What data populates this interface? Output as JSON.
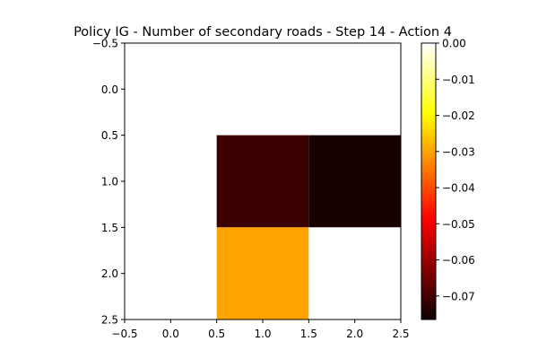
{
  "chart_data": {
    "type": "heatmap",
    "title": "Policy IG - Number of secondary roads - Step 14 - Action 4",
    "xlabel": "",
    "ylabel": "",
    "xlim": [
      -0.5,
      2.5
    ],
    "ylim": [
      2.5,
      -0.5
    ],
    "x_ticks": [
      "−0.5",
      "0.0",
      "0.5",
      "1.0",
      "1.5",
      "2.0",
      "2.5"
    ],
    "x_tick_values": [
      -0.5,
      0.0,
      0.5,
      1.0,
      1.5,
      2.0,
      2.5
    ],
    "y_ticks": [
      "−0.5",
      "0.0",
      "0.5",
      "1.0",
      "1.5",
      "2.0",
      "2.5"
    ],
    "y_tick_values": [
      -0.5,
      0.0,
      0.5,
      1.0,
      1.5,
      2.0,
      2.5
    ],
    "rows": [
      0,
      1,
      2
    ],
    "cols": [
      0,
      1,
      2
    ],
    "values": [
      [
        0.0,
        0.0,
        0.0
      ],
      [
        0.0,
        -0.071,
        -0.075
      ],
      [
        0.0,
        -0.03,
        0.0
      ]
    ],
    "colormap": "hot",
    "colorbar": {
      "vmin": -0.0765,
      "vmax": 0.0,
      "ticks": [
        "0.00",
        "−0.01",
        "−0.02",
        "−0.03",
        "−0.04",
        "−0.05",
        "−0.06",
        "−0.07"
      ],
      "tick_values": [
        0.0,
        -0.01,
        -0.02,
        -0.03,
        -0.04,
        -0.05,
        -0.06,
        -0.07
      ]
    },
    "grid": false
  }
}
